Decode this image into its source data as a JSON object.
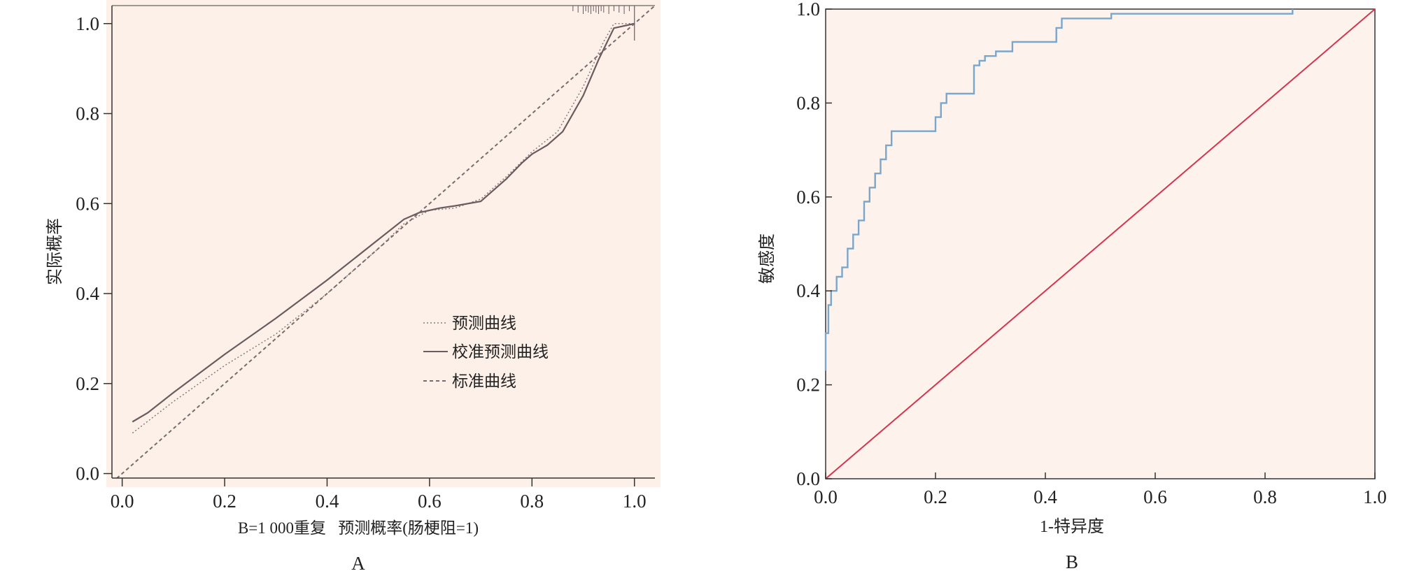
{
  "panel_a": {
    "letter": "A",
    "ylabel": "实际概率",
    "xlabel": "B=1 000重复   预测概率(肠梗阻=1)",
    "xticks": [
      "0.0",
      "0.2",
      "0.4",
      "0.6",
      "0.8",
      "1.0"
    ],
    "yticks": [
      "0.0",
      "0.2",
      "0.4",
      "0.6",
      "0.8",
      "1.0"
    ],
    "legend": [
      "预测曲线",
      "校准预测曲线",
      "标准曲线"
    ]
  },
  "panel_b": {
    "letter": "B",
    "ylabel": "敏感度",
    "xlabel": "1-特异度",
    "xticks": [
      "0.0",
      "0.2",
      "0.4",
      "0.6",
      "0.8",
      "1.0"
    ],
    "yticks": [
      "0.0",
      "0.2",
      "0.4",
      "0.6",
      "0.8",
      "1.0"
    ]
  },
  "colors": {
    "plot_bg_a": "#fdf0e8",
    "plot_bg_b": "#fdf3ec",
    "calib_line": "#6b5a5e",
    "apparent_line": "#8a7a7e",
    "ideal_line": "#7a6a6e",
    "roc_line": "#7aa6cc",
    "diag_line": "#d6344e"
  },
  "chart_data": [
    {
      "type": "line",
      "xlabel": "B=1 000重复   预测概率(肠梗阻=1)",
      "ylabel": "实际概率",
      "xlim": [
        -0.02,
        1.04
      ],
      "ylim": [
        -0.01,
        1.04
      ],
      "grid": false,
      "legend_position": "bottom-right",
      "series": [
        {
          "name": "预测曲线",
          "style": "dotted",
          "x": [
            0.02,
            0.1,
            0.2,
            0.3,
            0.4,
            0.5,
            0.55,
            0.6,
            0.65,
            0.7,
            0.75,
            0.8,
            0.85,
            0.9,
            0.94,
            0.96,
            0.98,
            1.0
          ],
          "y": [
            0.09,
            0.16,
            0.24,
            0.31,
            0.4,
            0.5,
            0.555,
            0.585,
            0.59,
            0.61,
            0.66,
            0.715,
            0.76,
            0.86,
            0.96,
            1.0,
            1.0,
            1.0
          ]
        },
        {
          "name": "校准预测曲线",
          "style": "solid",
          "x": [
            0.02,
            0.05,
            0.1,
            0.2,
            0.3,
            0.4,
            0.5,
            0.55,
            0.58,
            0.62,
            0.65,
            0.7,
            0.75,
            0.78,
            0.8,
            0.83,
            0.86,
            0.9,
            0.93,
            0.96,
            0.98,
            1.0
          ],
          "y": [
            0.115,
            0.135,
            0.18,
            0.265,
            0.345,
            0.43,
            0.52,
            0.565,
            0.58,
            0.59,
            0.595,
            0.605,
            0.655,
            0.69,
            0.71,
            0.73,
            0.76,
            0.84,
            0.92,
            0.99,
            0.995,
            1.0
          ]
        },
        {
          "name": "标准曲线",
          "style": "dashed",
          "x": [
            -0.02,
            1.04
          ],
          "y": [
            -0.02,
            1.04
          ]
        }
      ]
    },
    {
      "type": "line",
      "xlabel": "1-特异度",
      "ylabel": "敏感度",
      "xlim": [
        0,
        1
      ],
      "ylim": [
        0,
        1
      ],
      "grid": false,
      "series": [
        {
          "name": "",
          "x": [
            0.0,
            0.0,
            0.005,
            0.005,
            0.01,
            0.01,
            0.02,
            0.02,
            0.03,
            0.03,
            0.04,
            0.04,
            0.05,
            0.05,
            0.06,
            0.06,
            0.07,
            0.07,
            0.08,
            0.08,
            0.09,
            0.09,
            0.1,
            0.1,
            0.11,
            0.11,
            0.12,
            0.12,
            0.2,
            0.2,
            0.21,
            0.21,
            0.22,
            0.22,
            0.27,
            0.27,
            0.28,
            0.28,
            0.29,
            0.29,
            0.31,
            0.31,
            0.34,
            0.34,
            0.42,
            0.42,
            0.43,
            0.43,
            0.52,
            0.52,
            0.85,
            0.85
          ],
          "y": [
            0.23,
            0.31,
            0.31,
            0.37,
            0.37,
            0.4,
            0.4,
            0.43,
            0.43,
            0.45,
            0.45,
            0.49,
            0.49,
            0.52,
            0.52,
            0.55,
            0.55,
            0.59,
            0.59,
            0.62,
            0.62,
            0.65,
            0.65,
            0.68,
            0.68,
            0.71,
            0.71,
            0.74,
            0.74,
            0.77,
            0.77,
            0.8,
            0.8,
            0.82,
            0.82,
            0.88,
            0.88,
            0.89,
            0.89,
            0.9,
            0.9,
            0.91,
            0.91,
            0.93,
            0.93,
            0.96,
            0.96,
            0.98,
            0.98,
            0.99,
            0.99,
            1.0
          ]
        },
        {
          "name": "",
          "x": [
            0,
            1
          ],
          "y": [
            0,
            1
          ]
        }
      ]
    }
  ]
}
